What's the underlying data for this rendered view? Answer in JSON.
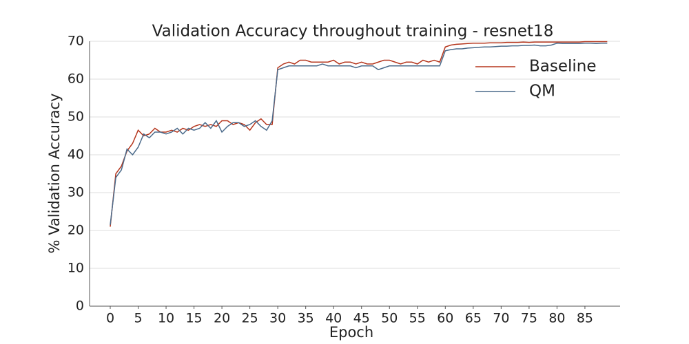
{
  "chart_data": {
    "type": "line",
    "title": "Validation Accuracy throughout training - resnet18",
    "x_label": "Epoch",
    "y_label": "% Validation Accuracy",
    "x": [
      0,
      1,
      2,
      3,
      4,
      5,
      6,
      7,
      8,
      9,
      10,
      11,
      12,
      13,
      14,
      15,
      16,
      17,
      18,
      19,
      20,
      21,
      22,
      23,
      24,
      25,
      26,
      27,
      28,
      29,
      30,
      31,
      32,
      33,
      34,
      35,
      36,
      37,
      38,
      39,
      40,
      41,
      42,
      43,
      44,
      45,
      46,
      47,
      48,
      49,
      50,
      51,
      52,
      53,
      54,
      55,
      56,
      57,
      58,
      59,
      60,
      61,
      62,
      63,
      64,
      65,
      66,
      67,
      68,
      69,
      70,
      71,
      72,
      73,
      74,
      75,
      76,
      77,
      78,
      79,
      80,
      81,
      82,
      83,
      84,
      85,
      86,
      87,
      88,
      89
    ],
    "series": [
      {
        "name": "Baseline",
        "color": "#b5361d",
        "values": [
          21,
          35,
          37,
          41,
          43,
          46.5,
          45,
          45.5,
          47,
          46,
          46,
          46.5,
          46,
          47,
          46.5,
          47.5,
          48,
          47.5,
          48,
          47.5,
          49,
          49,
          48,
          48.5,
          48,
          46.5,
          48.5,
          49.5,
          48,
          48,
          63,
          64,
          64.5,
          64,
          65,
          65,
          64.5,
          64.5,
          64.5,
          64.5,
          65,
          64,
          64.5,
          64.5,
          64,
          64.5,
          64,
          64,
          64.5,
          65,
          65,
          64.5,
          64,
          64.5,
          64.5,
          64,
          65,
          64.5,
          65,
          64.5,
          68.5,
          69,
          69.2,
          69.3,
          69.4,
          69.5,
          69.5,
          69.5,
          69.6,
          69.6,
          69.6,
          69.7,
          69.7,
          69.7,
          69.8,
          69.7,
          69.8,
          69.8,
          69.8,
          69.8,
          69.8,
          69.8,
          69.8,
          69.8,
          69.8,
          69.9,
          69.9,
          69.9,
          69.9,
          69.9
        ]
      },
      {
        "name": "QM",
        "color": "#4a6a8a",
        "values": [
          21.5,
          34,
          36,
          41.5,
          40,
          42,
          45.5,
          44.5,
          46,
          46,
          45.5,
          46,
          47,
          45.5,
          47,
          46.5,
          47,
          48.5,
          47,
          49,
          46,
          47.5,
          48.5,
          48.5,
          47.5,
          48,
          49,
          47.5,
          46.5,
          49,
          62.5,
          63,
          63.5,
          63.5,
          63.5,
          63.5,
          63.5,
          63.5,
          64,
          63.5,
          63.5,
          63.5,
          63.5,
          63.5,
          63,
          63.5,
          63.5,
          63.5,
          62.5,
          63,
          63.5,
          63.5,
          63.5,
          63.5,
          63.5,
          63.5,
          63.5,
          63.5,
          63.5,
          63.5,
          67.5,
          67.8,
          68,
          68,
          68.2,
          68.3,
          68.4,
          68.5,
          68.5,
          68.6,
          68.7,
          68.7,
          68.8,
          68.8,
          68.9,
          68.9,
          69,
          68.8,
          68.8,
          69,
          69.5,
          69.4,
          69.4,
          69.4,
          69.4,
          69.5,
          69.5,
          69.4,
          69.5,
          69.5
        ]
      }
    ],
    "xlim": [
      -3.7,
      91.3
    ],
    "ylim": [
      0,
      70
    ],
    "xticks": [
      0,
      5,
      10,
      15,
      20,
      25,
      30,
      35,
      40,
      45,
      50,
      55,
      60,
      65,
      70,
      75,
      80,
      85
    ],
    "yticks": [
      0,
      10,
      20,
      30,
      40,
      50,
      60,
      70
    ],
    "grid": true,
    "legend": "upper right"
  }
}
